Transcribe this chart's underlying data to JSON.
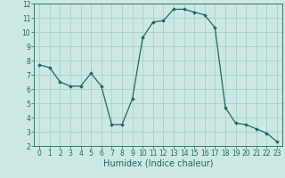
{
  "x": [
    0,
    1,
    2,
    3,
    4,
    5,
    6,
    7,
    8,
    9,
    10,
    11,
    12,
    13,
    14,
    15,
    16,
    17,
    18,
    19,
    20,
    21,
    22,
    23
  ],
  "y": [
    7.7,
    7.5,
    6.5,
    6.2,
    6.2,
    7.1,
    6.2,
    3.5,
    3.5,
    5.3,
    9.6,
    10.7,
    10.8,
    11.6,
    11.6,
    11.4,
    11.2,
    10.3,
    4.7,
    3.6,
    3.5,
    3.2,
    2.9,
    2.3
  ],
  "xlabel": "Humidex (Indice chaleur)",
  "ylim": [
    2,
    12
  ],
  "xlim": [
    -0.5,
    23.5
  ],
  "yticks": [
    2,
    3,
    4,
    5,
    6,
    7,
    8,
    9,
    10,
    11,
    12
  ],
  "xticks": [
    0,
    1,
    2,
    3,
    4,
    5,
    6,
    7,
    8,
    9,
    10,
    11,
    12,
    13,
    14,
    15,
    16,
    17,
    18,
    19,
    20,
    21,
    22,
    23
  ],
  "line_color": "#1a6b5a",
  "marker": "D",
  "marker_size": 1.8,
  "bg_color": "#cce8e4",
  "grid_color": "#aacfcb",
  "tick_fontsize": 5.5,
  "xlabel_fontsize": 7.0,
  "linewidth": 0.9
}
